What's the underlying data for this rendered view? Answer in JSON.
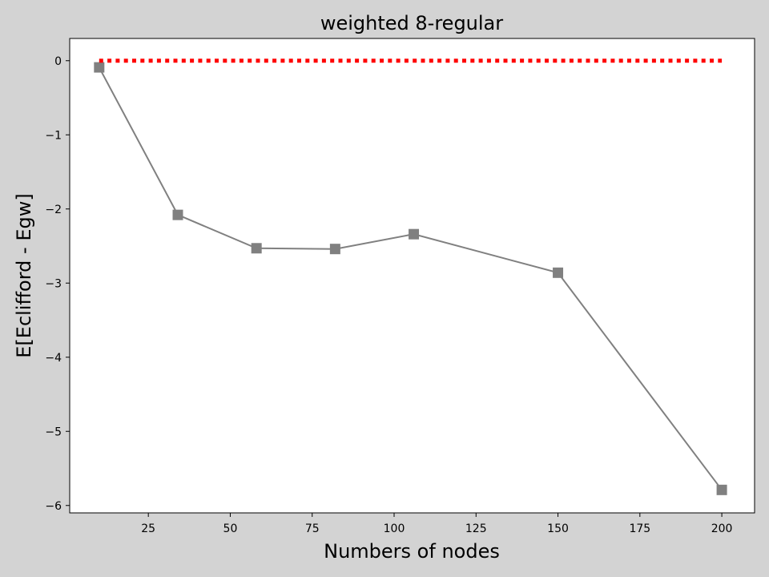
{
  "chart_data": {
    "type": "line",
    "title": "weighted 8-regular",
    "xlabel": "Numbers of nodes",
    "ylabel": "E[Eclifford - Egw]",
    "xlim": [
      1,
      210
    ],
    "ylim": [
      -6.1,
      0.3
    ],
    "x_ticks": [
      25,
      50,
      75,
      100,
      125,
      150,
      175,
      200
    ],
    "x_tick_labels": [
      "25",
      "50",
      "75",
      "100",
      "125",
      "150",
      "175",
      "200"
    ],
    "y_ticks": [
      0,
      -1,
      -2,
      -3,
      -4,
      -5,
      -6
    ],
    "y_tick_labels": [
      "0",
      "−1",
      "−2",
      "−3",
      "−4",
      "−5",
      "−6"
    ],
    "grid": false,
    "series": [
      {
        "style": "solid-square-markers",
        "color": "#808080",
        "x": [
          10,
          34,
          58,
          82,
          106,
          150,
          200
        ],
        "y": [
          -0.09,
          -2.08,
          -2.53,
          -2.54,
          -2.34,
          -2.86,
          -5.79
        ]
      },
      {
        "style": "dotted",
        "color": "#ff0000",
        "x": [
          10,
          200
        ],
        "y": [
          0,
          0
        ]
      }
    ]
  }
}
